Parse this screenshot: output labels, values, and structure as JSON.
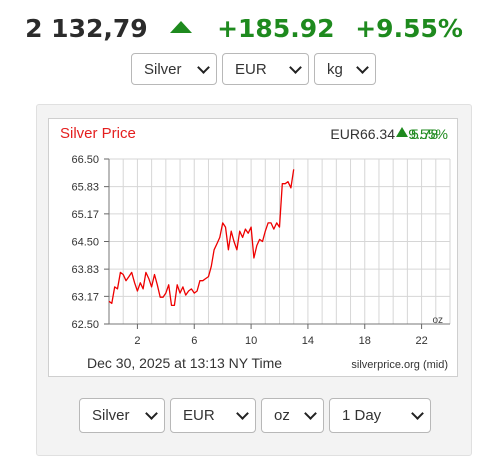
{
  "header": {
    "price": "2 132,79",
    "change": "+185.92",
    "change_pct": "+9.55%"
  },
  "top_selectors": {
    "metal": "Silver",
    "currency": "EUR",
    "unit": "kg"
  },
  "chart_data": {
    "type": "line",
    "title": "Silver Price",
    "current": {
      "price": "EUR66.34",
      "change": "5.78",
      "change_pct": "9.55%"
    },
    "unit_label": "oz",
    "timestamp": "Dec 30, 2025 at 13:13 NY Time",
    "source": "silverprice.org (mid)",
    "x_ticks": [
      "2",
      "6",
      "10",
      "14",
      "18",
      "22"
    ],
    "y_ticks": [
      "66.50",
      "65.83",
      "65.17",
      "64.50",
      "63.83",
      "63.17",
      "62.50"
    ],
    "xlim": [
      0,
      24
    ],
    "ylim": [
      62.5,
      66.5
    ],
    "grid": true,
    "series": [
      {
        "x": [
          0.0,
          0.2,
          0.4,
          0.6,
          0.8,
          1.0,
          1.2,
          1.4,
          1.6,
          1.8,
          2.0,
          2.2,
          2.4,
          2.6,
          2.8,
          3.0,
          3.2,
          3.4,
          3.6,
          3.8,
          4.0,
          4.2,
          4.4,
          4.6,
          4.8,
          5.0,
          5.2,
          5.4,
          5.6,
          5.8,
          6.0,
          6.2,
          6.4,
          6.6,
          6.8,
          7.0,
          7.2,
          7.4,
          7.6,
          7.8,
          8.0,
          8.2,
          8.4,
          8.6,
          8.8,
          9.0,
          9.2,
          9.4,
          9.6,
          9.8,
          10.0,
          10.2,
          10.4,
          10.6,
          10.8,
          11.0,
          11.2,
          11.4,
          11.6,
          11.8,
          12.0,
          12.2,
          12.4,
          12.6,
          12.8,
          13.0
        ],
        "y": [
          63.05,
          63.0,
          63.4,
          63.35,
          63.75,
          63.7,
          63.55,
          63.65,
          63.75,
          63.5,
          63.3,
          63.5,
          63.35,
          63.75,
          63.6,
          63.4,
          63.7,
          63.45,
          63.15,
          63.15,
          63.25,
          63.45,
          62.95,
          62.95,
          63.45,
          63.25,
          63.4,
          63.2,
          63.3,
          63.35,
          63.25,
          63.3,
          63.55,
          63.55,
          63.6,
          63.65,
          63.9,
          64.3,
          64.45,
          64.6,
          64.95,
          64.85,
          64.3,
          64.75,
          64.5,
          64.3,
          64.75,
          64.6,
          64.8,
          64.7,
          64.85,
          64.1,
          64.4,
          64.55,
          64.5,
          64.75,
          64.95,
          64.95,
          64.8,
          64.95,
          64.85,
          65.9,
          65.9,
          65.95,
          65.8,
          66.25
        ]
      }
    ]
  },
  "bottom_selectors": {
    "metal": "Silver",
    "currency": "EUR",
    "unit": "oz",
    "period": "1 Day"
  },
  "colors": {
    "up": "#1e8a1e",
    "line": "#ee0000",
    "title": "#e41e1e"
  }
}
